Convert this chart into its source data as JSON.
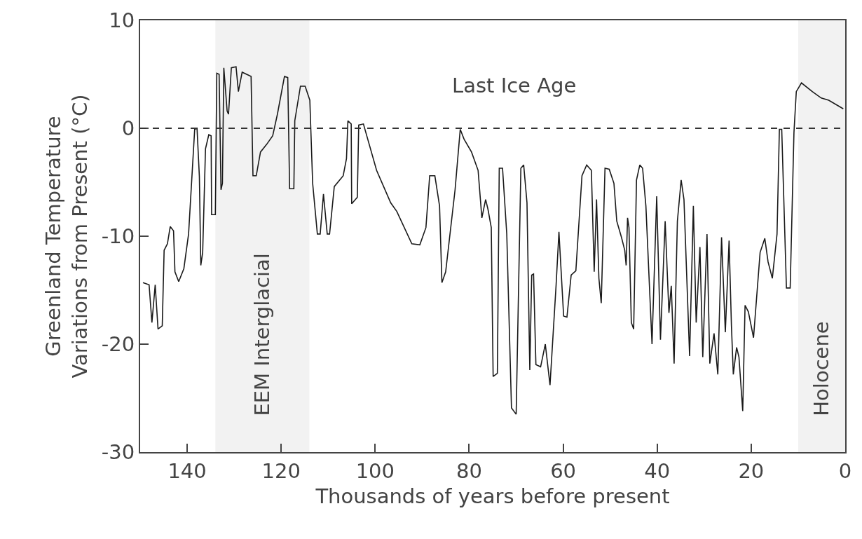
{
  "chart_data": {
    "type": "line",
    "xlabel": "Thousands of years before present",
    "ylabel": "Greenland Temperature\nVariations from Present (°C)",
    "annotations": [
      "Last Ice Age"
    ],
    "xlim": [
      150,
      0
    ],
    "xticks": [
      140,
      120,
      100,
      80,
      60,
      40,
      20,
      0
    ],
    "ylim": [
      -30,
      10
    ],
    "yticks": [
      10,
      0,
      -10,
      -20,
      -30
    ],
    "marker": "none",
    "line_style": "solid",
    "ref_lines": [
      {
        "axis": "y",
        "value": 0,
        "color": "#333333",
        "line_style": "dashed"
      }
    ],
    "bands": [
      {
        "axis": "x",
        "from": 134,
        "to": 114,
        "label": "EEM Interglacial",
        "color": "#f2f2f2"
      },
      {
        "axis": "x",
        "from": 10,
        "to": 0,
        "label": "Holocene",
        "color": "#f2f2f2"
      }
    ],
    "series": [
      {
        "color": "#1a1a1a",
        "x": [
          149.4,
          148.1,
          147.5,
          146.8,
          146.2,
          145.3,
          144.9,
          144.2,
          143.6,
          142.9,
          142.6,
          141.8,
          140.7,
          139.7,
          138.4,
          137.9,
          137.4,
          137.1,
          136.7,
          136.1,
          135.4,
          134.9,
          134.8,
          134.0,
          133.7,
          133.2,
          132.8,
          132.5,
          132.2,
          131.5,
          131.2,
          130.6,
          129.6,
          129.1,
          128.3,
          126.4,
          126.0,
          125.3,
          124.4,
          123.1,
          121.8,
          120.8,
          119.3,
          118.6,
          118.2,
          117.3,
          117.1,
          115.9,
          114.9,
          113.9,
          113.3,
          112.3,
          111.7,
          111.0,
          110.2,
          109.7,
          108.7,
          106.8,
          106.1,
          105.8,
          105.1,
          105.0,
          103.8,
          103.5,
          102.5,
          99.7,
          96.7,
          95.4,
          92.2,
          90.5,
          89.2,
          88.4,
          87.3,
          86.3,
          85.8,
          85.0,
          83.0,
          81.9,
          81.1,
          79.5,
          78.1,
          77.3,
          76.5,
          76.0,
          75.3,
          74.9,
          74.0,
          73.6,
          72.9,
          72.0,
          71.0,
          70.0,
          69.0,
          68.4,
          67.7,
          67.1,
          66.7,
          66.3,
          65.8,
          64.8,
          63.8,
          62.8,
          61.5,
          60.9,
          59.9,
          59.2,
          58.3,
          57.3,
          56.0,
          55.0,
          54.0,
          53.4,
          52.9,
          52.4,
          51.9,
          51.1,
          50.2,
          49.2,
          48.6,
          47.6,
          46.9,
          46.6,
          46.3,
          46.0,
          45.5,
          45.0,
          44.4,
          43.7,
          43.1,
          42.4,
          41.1,
          40.1,
          39.3,
          38.3,
          37.5,
          37.0,
          36.4,
          35.7,
          34.9,
          34.3,
          33.1,
          32.3,
          31.7,
          30.9,
          30.3,
          29.4,
          28.8,
          27.9,
          27.1,
          26.3,
          25.5,
          24.7,
          24.2,
          23.8,
          23.1,
          22.6,
          21.8,
          21.3,
          20.6,
          19.5,
          18.1,
          17.1,
          16.4,
          15.5,
          14.5,
          14.0,
          13.5,
          12.5,
          11.7,
          10.9,
          10.4,
          9.3,
          7.0,
          5.1,
          3.5,
          0.4
        ],
        "values": [
          -14.3,
          -14.5,
          -18,
          -14.5,
          -18.6,
          -18.3,
          -11.3,
          -10.7,
          -9.1,
          -9.5,
          -13.3,
          -14.2,
          -13,
          -9.8,
          -0.1,
          0,
          -4.5,
          -12.7,
          -11.5,
          -1.9,
          -0.6,
          -0.7,
          -8,
          -8,
          5.1,
          5,
          -5.7,
          -5.1,
          5.6,
          1.6,
          1.3,
          5.6,
          5.7,
          3.4,
          5.2,
          4.8,
          -4.4,
          -4.4,
          -2.2,
          -1.5,
          -0.7,
          1.3,
          4.8,
          4.7,
          -5.6,
          -5.6,
          0.7,
          3.9,
          3.9,
          2.6,
          -5.1,
          -9.8,
          -9.8,
          -6.1,
          -9.8,
          -9.8,
          -5.4,
          -4.4,
          -2.8,
          0.7,
          0.4,
          -7,
          -6.4,
          0.3,
          0.4,
          -3.9,
          -6.9,
          -7.7,
          -10.7,
          -10.8,
          -9.2,
          -4.4,
          -4.4,
          -7.2,
          -14.3,
          -13.3,
          -5.7,
          -0.1,
          -1,
          -2.2,
          -3.9,
          -8.3,
          -6.6,
          -7.5,
          -9.2,
          -23,
          -22.7,
          -3.7,
          -3.7,
          -9.8,
          -25.9,
          -26.5,
          -3.7,
          -3.4,
          -6.9,
          -22.4,
          -13.6,
          -13.5,
          -21.9,
          -22.1,
          -20,
          -23.8,
          -14.5,
          -9.6,
          -17.4,
          -17.5,
          -13.6,
          -13.2,
          -4.4,
          -3.4,
          -3.9,
          -13.3,
          -6.6,
          -13.9,
          -16.2,
          -3.7,
          -3.8,
          -5.1,
          -8.6,
          -10.1,
          -11.3,
          -12.7,
          -8.3,
          -9.2,
          -18,
          -18.6,
          -4.8,
          -3.4,
          -3.7,
          -7.2,
          -20,
          -6.3,
          -19.6,
          -8.6,
          -17.1,
          -14.6,
          -21.8,
          -8.6,
          -4.8,
          -6.6,
          -21.1,
          -7.2,
          -18,
          -11,
          -21.2,
          -9.8,
          -21.8,
          -19,
          -22.8,
          -10.1,
          -18.9,
          -10.4,
          -18.3,
          -22.8,
          -20.3,
          -21.2,
          -26.2,
          -16.4,
          -17,
          -19.4,
          -11.5,
          -10.2,
          -12.4,
          -13.9,
          -9.8,
          -0.1,
          -0.1,
          -14.8,
          -14.8,
          -0.4,
          3.4,
          4.2,
          3.4,
          2.8,
          2.6,
          1.8
        ]
      }
    ]
  }
}
